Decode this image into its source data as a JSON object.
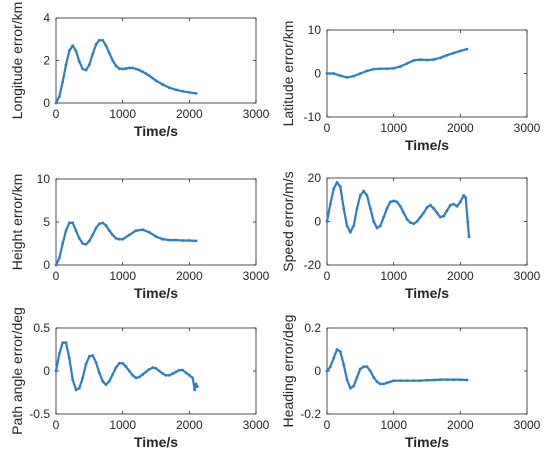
{
  "chart_data": [
    {
      "type": "line",
      "ylabel": "Longitude error/km",
      "xlabel": "Time/s",
      "xlim": [
        0,
        3000
      ],
      "ylim": [
        0,
        4
      ],
      "xticks": [
        "0",
        "1000",
        "2000",
        "3000"
      ],
      "yticks": [
        "0",
        "2",
        "4"
      ],
      "line_color": "#2f7ec1",
      "grid": false,
      "x": [
        0,
        50,
        100,
        150,
        200,
        250,
        300,
        350,
        400,
        450,
        500,
        550,
        600,
        650,
        700,
        750,
        800,
        850,
        900,
        950,
        1000,
        1050,
        1100,
        1150,
        1200,
        1250,
        1300,
        1350,
        1400,
        1450,
        1500,
        1600,
        1700,
        1800,
        1900,
        2000,
        2100
      ],
      "y": [
        0,
        0.3,
        1.0,
        1.8,
        2.45,
        2.7,
        2.45,
        1.95,
        1.6,
        1.55,
        1.8,
        2.3,
        2.75,
        2.95,
        2.95,
        2.7,
        2.35,
        2.0,
        1.75,
        1.62,
        1.6,
        1.62,
        1.65,
        1.65,
        1.6,
        1.55,
        1.47,
        1.38,
        1.28,
        1.17,
        1.05,
        0.87,
        0.72,
        0.62,
        0.55,
        0.5,
        0.45
      ]
    },
    {
      "type": "line",
      "ylabel": "Latitude error/km",
      "xlabel": "Time/s",
      "xlim": [
        0,
        3000
      ],
      "ylim": [
        -10,
        10
      ],
      "xticks": [
        "0",
        "1000",
        "2000",
        "3000"
      ],
      "yticks": [
        "-10",
        "0",
        "10"
      ],
      "line_color": "#2f7ec1",
      "grid": false,
      "x": [
        0,
        100,
        200,
        300,
        400,
        500,
        600,
        700,
        800,
        900,
        1000,
        1100,
        1200,
        1300,
        1400,
        1500,
        1600,
        1700,
        1800,
        1900,
        2000,
        2100
      ],
      "y": [
        0,
        0,
        -0.5,
        -0.9,
        -0.6,
        0,
        0.6,
        1.0,
        1.1,
        1.1,
        1.2,
        1.6,
        2.3,
        3.0,
        3.2,
        3.1,
        3.2,
        3.6,
        4.2,
        4.7,
        5.2,
        5.6
      ]
    },
    {
      "type": "line",
      "ylabel": "Height error/km",
      "xlabel": "Time/s",
      "xlim": [
        0,
        3000
      ],
      "ylim": [
        0,
        10
      ],
      "xticks": [
        "0",
        "1000",
        "2000",
        "3000"
      ],
      "yticks": [
        "0",
        "5",
        "10"
      ],
      "line_color": "#2f7ec1",
      "grid": false,
      "x": [
        0,
        50,
        100,
        150,
        200,
        250,
        300,
        350,
        400,
        450,
        500,
        550,
        600,
        650,
        700,
        750,
        800,
        850,
        900,
        950,
        1000,
        1100,
        1200,
        1300,
        1400,
        1500,
        1600,
        1700,
        1800,
        1900,
        2000,
        2100
      ],
      "y": [
        0,
        0.8,
        2.5,
        4.0,
        4.9,
        4.9,
        4.0,
        3.1,
        2.5,
        2.4,
        2.8,
        3.5,
        4.3,
        4.8,
        4.9,
        4.6,
        4.0,
        3.5,
        3.1,
        3.0,
        3.0,
        3.5,
        4.0,
        4.1,
        3.8,
        3.3,
        3.0,
        2.9,
        2.9,
        2.85,
        2.85,
        2.8
      ]
    },
    {
      "type": "line",
      "ylabel": "Speed error/m/s",
      "xlabel": "Time/s",
      "xlim": [
        0,
        3000
      ],
      "ylim": [
        -20,
        20
      ],
      "xticks": [
        "0",
        "1000",
        "2000",
        "3000"
      ],
      "yticks": [
        "-20",
        "0",
        "20"
      ],
      "line_color": "#2f7ec1",
      "grid": false,
      "x": [
        0,
        50,
        100,
        150,
        200,
        250,
        300,
        350,
        400,
        450,
        500,
        550,
        600,
        650,
        700,
        750,
        800,
        850,
        900,
        950,
        1000,
        1050,
        1100,
        1150,
        1200,
        1250,
        1300,
        1350,
        1400,
        1450,
        1500,
        1550,
        1600,
        1650,
        1700,
        1750,
        1800,
        1850,
        1900,
        1950,
        2000,
        2050,
        2080,
        2110,
        2130
      ],
      "y": [
        0,
        8,
        15,
        18,
        16,
        6,
        -2,
        -5,
        -2,
        6,
        12,
        14,
        12,
        6,
        0,
        -3,
        -2,
        2,
        6,
        9,
        9.5,
        9,
        7,
        4,
        1,
        -0.5,
        -1,
        0,
        2,
        4,
        6.5,
        7.5,
        6,
        4,
        2,
        2.5,
        5,
        7.5,
        8,
        7,
        9,
        12,
        11,
        0,
        -7
      ]
    },
    {
      "type": "line",
      "ylabel": "Path angle error/deg",
      "xlabel": "Time/s",
      "xlim": [
        0,
        3000
      ],
      "ylim": [
        -0.5,
        0.5
      ],
      "xticks": [
        "0",
        "1000",
        "2000",
        "3000"
      ],
      "yticks": [
        "-0.5",
        "0",
        "0.5"
      ],
      "line_color": "#2f7ec1",
      "grid": false,
      "x": [
        0,
        50,
        100,
        150,
        200,
        250,
        300,
        350,
        400,
        450,
        500,
        550,
        600,
        650,
        700,
        750,
        800,
        850,
        900,
        950,
        1000,
        1050,
        1100,
        1150,
        1200,
        1250,
        1300,
        1350,
        1400,
        1450,
        1500,
        1550,
        1600,
        1650,
        1700,
        1750,
        1800,
        1850,
        1900,
        1950,
        2000,
        2050,
        2080,
        2100,
        2120
      ],
      "y": [
        0,
        0.2,
        0.33,
        0.33,
        0.15,
        -0.1,
        -0.22,
        -0.2,
        -0.08,
        0.08,
        0.17,
        0.18,
        0.1,
        -0.02,
        -0.12,
        -0.16,
        -0.12,
        -0.04,
        0.04,
        0.09,
        0.09,
        0.05,
        0,
        -0.05,
        -0.08,
        -0.07,
        -0.04,
        -0.01,
        0.02,
        0.04,
        0.03,
        0,
        -0.03,
        -0.05,
        -0.05,
        -0.03,
        -0.01,
        0.01,
        0.01,
        -0.02,
        -0.05,
        -0.08,
        -0.22,
        -0.15,
        -0.18
      ]
    },
    {
      "type": "line",
      "ylabel": "Heading error/deg",
      "xlabel": "Time/s",
      "xlim": [
        0,
        3000
      ],
      "ylim": [
        -0.2,
        0.2
      ],
      "xticks": [
        "0",
        "1000",
        "2000",
        "3000"
      ],
      "yticks": [
        "-0.2",
        "0",
        "0.2"
      ],
      "line_color": "#2f7ec1",
      "grid": false,
      "x": [
        0,
        50,
        100,
        150,
        200,
        250,
        300,
        350,
        400,
        450,
        500,
        550,
        600,
        650,
        700,
        750,
        800,
        850,
        900,
        950,
        1000,
        1100,
        1200,
        1300,
        1400,
        1500,
        1600,
        1700,
        1800,
        1900,
        2000,
        2100
      ],
      "y": [
        0,
        0.02,
        0.06,
        0.1,
        0.09,
        0.03,
        -0.04,
        -0.08,
        -0.07,
        -0.03,
        0.01,
        0.02,
        0.02,
        0,
        -0.03,
        -0.05,
        -0.06,
        -0.06,
        -0.055,
        -0.05,
        -0.045,
        -0.045,
        -0.045,
        -0.045,
        -0.045,
        -0.043,
        -0.042,
        -0.04,
        -0.04,
        -0.04,
        -0.04,
        -0.042
      ]
    }
  ]
}
